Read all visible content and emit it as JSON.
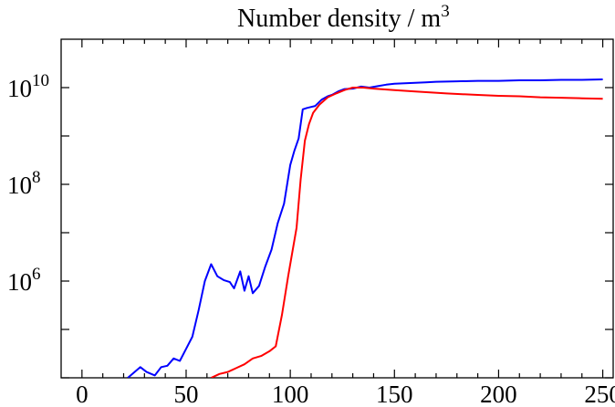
{
  "chart_data": {
    "type": "line",
    "title": "Number  density / m",
    "title_superscript": "3",
    "xlim": [
      -10,
      255
    ],
    "ylim_log10": [
      4.0,
      11.0
    ],
    "y_scale": "log",
    "x_ticks": [
      0,
      50,
      100,
      150,
      200,
      250
    ],
    "x_tick_labels": [
      "0",
      "50",
      "100",
      "150",
      "200",
      "250"
    ],
    "y_ticks": [
      {
        "base": "10",
        "exp": "6",
        "log10": 6
      },
      {
        "base": "10",
        "exp": "8",
        "log10": 8
      },
      {
        "base": "10",
        "exp": "10",
        "log10": 10
      }
    ],
    "grid": false,
    "legend": "none",
    "series": [
      {
        "color": "#0000ff",
        "x": [
          22,
          28,
          31,
          35,
          38,
          41,
          44,
          47,
          50,
          53,
          56,
          59,
          62,
          65,
          68,
          71,
          73,
          76,
          78,
          80,
          82,
          85,
          88,
          91,
          94,
          97,
          100,
          102,
          104,
          106,
          108,
          110,
          112,
          115,
          118,
          120,
          123,
          126,
          130,
          134,
          138,
          142,
          146,
          150,
          155,
          160,
          165,
          170,
          180,
          190,
          200,
          210,
          220,
          230,
          240,
          250
        ],
        "y": [
          4.0,
          4.22,
          4.12,
          4.05,
          4.22,
          4.25,
          4.4,
          4.35,
          4.6,
          4.85,
          5.4,
          6.0,
          6.35,
          6.1,
          6.02,
          5.98,
          5.85,
          6.2,
          5.8,
          6.1,
          5.75,
          5.9,
          6.3,
          6.65,
          7.2,
          7.6,
          8.4,
          8.7,
          8.95,
          9.55,
          9.58,
          9.6,
          9.62,
          9.75,
          9.82,
          9.85,
          9.92,
          9.97,
          9.98,
          10.02,
          10.0,
          10.03,
          10.06,
          10.08,
          10.09,
          10.1,
          10.11,
          10.12,
          10.13,
          10.14,
          10.14,
          10.15,
          10.15,
          10.16,
          10.16,
          10.17
        ]
      },
      {
        "color": "#ff0000",
        "x": [
          62,
          66,
          70,
          74,
          78,
          82,
          86,
          90,
          93,
          96,
          99,
          101,
          103,
          105,
          107,
          109,
          111,
          114,
          118,
          122,
          126,
          130,
          135,
          140,
          150,
          160,
          175,
          190,
          200,
          210,
          220,
          230,
          240,
          250
        ],
        "y": [
          4.0,
          4.08,
          4.12,
          4.2,
          4.28,
          4.4,
          4.45,
          4.55,
          4.65,
          5.3,
          6.1,
          6.6,
          7.1,
          8.1,
          8.9,
          9.25,
          9.48,
          9.65,
          9.8,
          9.88,
          9.95,
          10.0,
          10.0,
          9.98,
          9.95,
          9.92,
          9.88,
          9.85,
          9.83,
          9.82,
          9.8,
          9.79,
          9.78,
          9.77
        ]
      }
    ]
  }
}
